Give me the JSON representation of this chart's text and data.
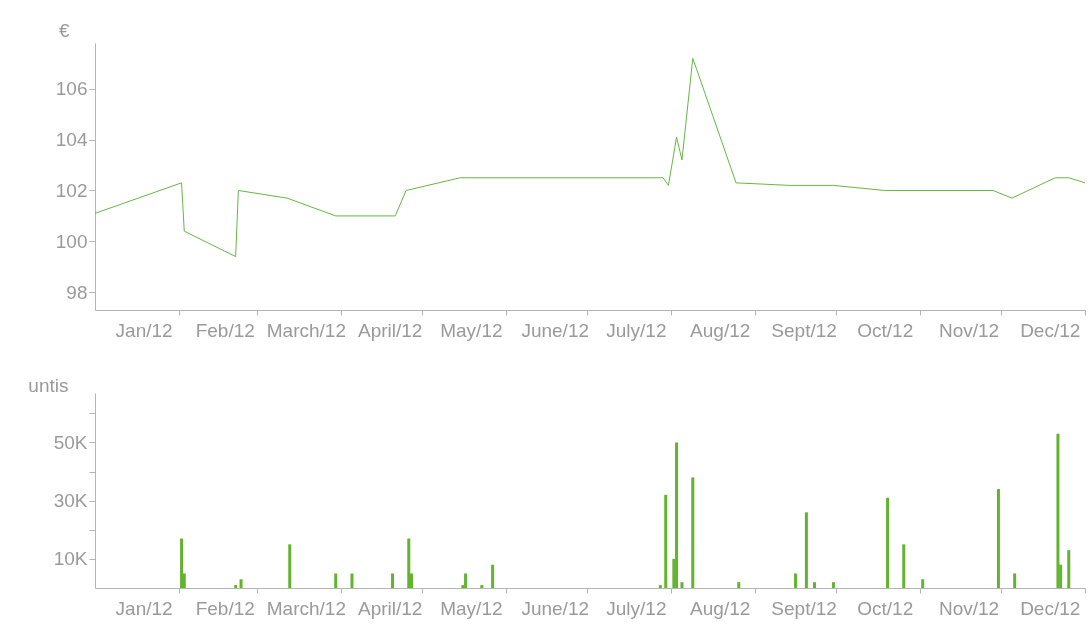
{
  "chart_data": [
    {
      "type": "line",
      "ylabel": "€",
      "x": [
        "2012-01-01",
        "2012-02-02",
        "2012-02-03",
        "2012-02-22",
        "2012-02-23",
        "2012-03-12",
        "2012-03-30",
        "2012-04-21",
        "2012-04-25",
        "2012-05-15",
        "2012-07-29",
        "2012-07-31",
        "2012-08-03",
        "2012-08-05",
        "2012-08-09",
        "2012-08-25",
        "2012-09-14",
        "2012-09-30",
        "2012-10-19",
        "2012-11-28",
        "2012-12-05",
        "2012-12-21",
        "2012-12-26",
        "2013-01-01"
      ],
      "series": [
        {
          "color": "#66b843",
          "values": [
            101.1,
            102.3,
            100.4,
            99.4,
            102.0,
            101.7,
            101.0,
            101.0,
            102.0,
            102.5,
            102.5,
            102.2,
            104.1,
            103.2,
            107.2,
            102.3,
            102.2,
            102.2,
            102.0,
            102.0,
            101.7,
            102.5,
            102.5,
            102.3
          ]
        }
      ],
      "xlim": [
        "2012-01-01",
        "2013-01-01"
      ],
      "xticks": [
        {
          "value": "2012-01-16",
          "label": "Jan/12"
        },
        {
          "value": "2012-02-01",
          "label": null
        },
        {
          "value": "2012-02-15",
          "label": "Feb/12"
        },
        {
          "value": "2012-03-01",
          "label": null
        },
        {
          "value": "2012-03-16",
          "label": "March/12"
        },
        {
          "value": "2012-04-01",
          "label": null
        },
        {
          "value": "2012-04-16",
          "label": "April/12"
        },
        {
          "value": "2012-05-01",
          "label": null
        },
        {
          "value": "2012-05-16",
          "label": "May/12"
        },
        {
          "value": "2012-06-01",
          "label": null
        },
        {
          "value": "2012-06-16",
          "label": "June/12"
        },
        {
          "value": "2012-07-01",
          "label": null
        },
        {
          "value": "2012-07-16",
          "label": "July/12"
        },
        {
          "value": "2012-08-01",
          "label": null
        },
        {
          "value": "2012-08-16",
          "label": "Aug/12"
        },
        {
          "value": "2012-09-01",
          "label": null
        },
        {
          "value": "2012-09-16",
          "label": "Sept/12"
        },
        {
          "value": "2012-10-01",
          "label": null
        },
        {
          "value": "2012-10-16",
          "label": "Oct/12"
        },
        {
          "value": "2012-11-01",
          "label": null
        },
        {
          "value": "2012-11-16",
          "label": "Nov/12"
        },
        {
          "value": "2012-12-01",
          "label": null
        },
        {
          "value": "2012-12-16",
          "label": "Dec/12"
        },
        {
          "value": "2013-01-01",
          "label": null
        }
      ],
      "ylim": [
        97.3,
        107.8
      ],
      "yticks": [
        98,
        100,
        102,
        104,
        106
      ]
    },
    {
      "type": "bar",
      "ylabel": "untis",
      "color": "#62b42f",
      "x": [
        "2012-02-02",
        "2012-02-03",
        "2012-02-22",
        "2012-02-24",
        "2012-03-13",
        "2012-03-30",
        "2012-04-05",
        "2012-04-20",
        "2012-04-26",
        "2012-04-27",
        "2012-05-16",
        "2012-05-17",
        "2012-05-23",
        "2012-05-27",
        "2012-07-28",
        "2012-07-30",
        "2012-08-02",
        "2012-08-03",
        "2012-08-05",
        "2012-08-09",
        "2012-08-26",
        "2012-09-16",
        "2012-09-20",
        "2012-09-23",
        "2012-09-30",
        "2012-10-20",
        "2012-10-26",
        "2012-11-02",
        "2012-11-30",
        "2012-12-06",
        "2012-12-22",
        "2012-12-23",
        "2012-12-26"
      ],
      "values": [
        17000,
        5000,
        1000,
        3000,
        15000,
        5000,
        5000,
        5000,
        17000,
        5000,
        1000,
        5000,
        1000,
        8000,
        1000,
        32000,
        10000,
        50000,
        2000,
        38000,
        2000,
        5000,
        26000,
        2000,
        2000,
        31000,
        15000,
        3000,
        34000,
        5000,
        53000,
        8000,
        13000
      ],
      "xlim": [
        "2012-01-01",
        "2013-01-01"
      ],
      "xticks": [
        {
          "value": "2012-01-16",
          "label": "Jan/12"
        },
        {
          "value": "2012-02-01",
          "label": null
        },
        {
          "value": "2012-02-15",
          "label": "Feb/12"
        },
        {
          "value": "2012-03-01",
          "label": null
        },
        {
          "value": "2012-03-16",
          "label": "March/12"
        },
        {
          "value": "2012-04-01",
          "label": null
        },
        {
          "value": "2012-04-16",
          "label": "April/12"
        },
        {
          "value": "2012-05-01",
          "label": null
        },
        {
          "value": "2012-05-16",
          "label": "May/12"
        },
        {
          "value": "2012-06-01",
          "label": null
        },
        {
          "value": "2012-06-16",
          "label": "June/12"
        },
        {
          "value": "2012-07-01",
          "label": null
        },
        {
          "value": "2012-07-16",
          "label": "July/12"
        },
        {
          "value": "2012-08-01",
          "label": null
        },
        {
          "value": "2012-08-16",
          "label": "Aug/12"
        },
        {
          "value": "2012-09-01",
          "label": null
        },
        {
          "value": "2012-09-16",
          "label": "Sept/12"
        },
        {
          "value": "2012-10-01",
          "label": null
        },
        {
          "value": "2012-10-16",
          "label": "Oct/12"
        },
        {
          "value": "2012-11-01",
          "label": null
        },
        {
          "value": "2012-11-16",
          "label": "Nov/12"
        },
        {
          "value": "2012-12-01",
          "label": null
        },
        {
          "value": "2012-12-16",
          "label": "Dec/12"
        },
        {
          "value": "2013-01-01",
          "label": null
        }
      ],
      "ylim": [
        0,
        67000
      ],
      "yticks": [
        {
          "value": 10000,
          "label": "10K"
        },
        {
          "value": 20000,
          "label": null
        },
        {
          "value": 30000,
          "label": "30K"
        },
        {
          "value": 40000,
          "label": null
        },
        {
          "value": 50000,
          "label": "50K"
        },
        {
          "value": 60000,
          "label": null
        }
      ]
    }
  ]
}
